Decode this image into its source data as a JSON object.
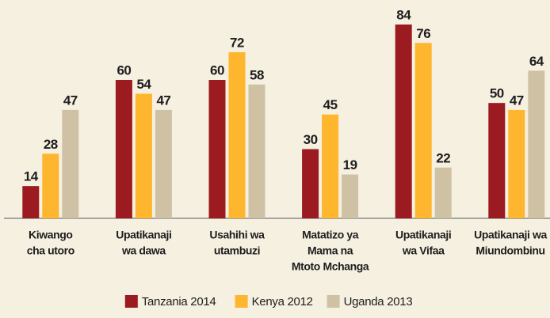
{
  "chart_data": {
    "type": "bar",
    "categories": [
      [
        "Kiwango",
        "cha utoro"
      ],
      [
        "Upatikanaji",
        "wa dawa"
      ],
      [
        "Usahihi wa",
        "utambuzi"
      ],
      [
        "Matatizo ya",
        "Mama na",
        "Mtoto Mchanga"
      ],
      [
        "Upatikanaji",
        "wa Vifaa"
      ],
      [
        "Upatikanaji wa",
        "Miundombinu"
      ]
    ],
    "series": [
      {
        "name": "Tanzania 2014",
        "color": "#9b1b20",
        "values": [
          14,
          60,
          60,
          30,
          84,
          50
        ]
      },
      {
        "name": "Kenya 2012",
        "color": "#fdb62d",
        "values": [
          28,
          54,
          72,
          45,
          76,
          47
        ]
      },
      {
        "name": "Uganda 2013",
        "color": "#cfc1a4",
        "values": [
          47,
          47,
          58,
          19,
          22,
          64
        ]
      }
    ],
    "ylim": [
      0,
      90
    ],
    "legend": "bottom"
  }
}
